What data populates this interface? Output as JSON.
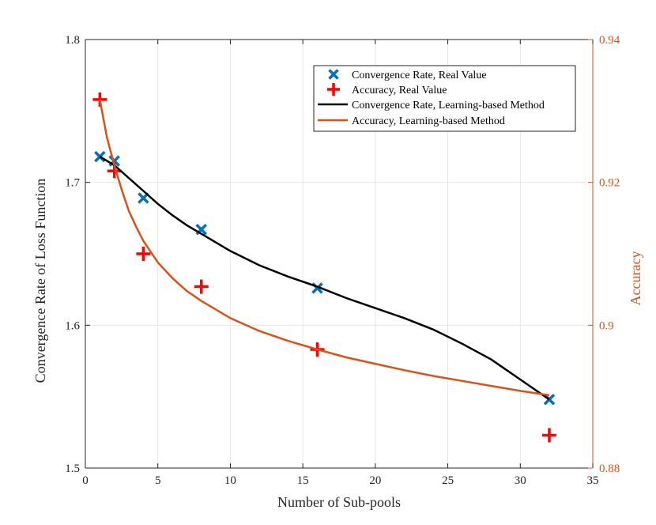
{
  "chart_data": {
    "type": "line",
    "title": "",
    "xlabel": "Number of Sub-pools",
    "ylabel_left": "Convergence Rate of Loss Function",
    "ylabel_right": "Accuracy",
    "xlim": [
      0,
      35
    ],
    "ylim_left": [
      1.5,
      1.8
    ],
    "ylim_right": [
      0.88,
      0.94
    ],
    "xticks": [
      0,
      5,
      10,
      15,
      20,
      25,
      30,
      35
    ],
    "xtick_labels": [
      "0",
      "5",
      "10",
      "15",
      "20",
      "25",
      "30",
      "35"
    ],
    "yticks_left": [
      1.5,
      1.6,
      1.7,
      1.8
    ],
    "ytick_labels_left": [
      "1.5",
      "1.6",
      "1.7",
      "1.8"
    ],
    "yticks_right": [
      0.88,
      0.9,
      0.92,
      0.94
    ],
    "ytick_labels_right": [
      "0.88",
      "0.9",
      "0.92",
      "0.94"
    ],
    "grid": true,
    "legend_position": "top-right",
    "colors": {
      "convergence_marker": "#0072BD",
      "accuracy_marker": "#FF0000",
      "convergence_line": "#000000",
      "accuracy_line": "#D95319",
      "grid": "#e6e6e6",
      "axis": "#262626"
    },
    "series": [
      {
        "name": "Convergence Rate, Real Value",
        "kind": "marker-x",
        "axis": "left",
        "x": [
          1,
          2,
          4,
          8,
          16,
          32
        ],
        "y": [
          1.718,
          1.715,
          1.689,
          1.667,
          1.626,
          1.548
        ]
      },
      {
        "name": "Accuracy, Real Value",
        "kind": "marker-plus",
        "axis": "right",
        "x": [
          1,
          2,
          4,
          8,
          16,
          32
        ],
        "y": [
          0.9316,
          0.9216,
          0.91,
          0.9054,
          0.8966,
          0.8846
        ]
      },
      {
        "name": "Convergence Rate, Learning-based Method",
        "kind": "line",
        "axis": "left",
        "x": [
          1,
          2,
          3,
          4,
          5,
          6,
          7,
          8,
          10,
          12,
          14,
          16,
          18,
          20,
          22,
          24,
          26,
          28,
          30,
          32
        ],
        "y": [
          1.718,
          1.712,
          1.703,
          1.694,
          1.685,
          1.677,
          1.67,
          1.664,
          1.652,
          1.642,
          1.634,
          1.627,
          1.619,
          1.612,
          1.605,
          1.597,
          1.587,
          1.576,
          1.562,
          1.548
        ]
      },
      {
        "name": "Accuracy, Learning-based Method",
        "kind": "line",
        "axis": "right",
        "x": [
          1,
          1.5,
          2,
          2.5,
          3,
          3.5,
          4,
          5,
          6,
          7,
          8,
          10,
          12,
          14,
          16,
          18,
          20,
          22,
          24,
          26,
          28,
          30,
          32
        ],
        "y": [
          0.9316,
          0.9262,
          0.9224,
          0.919,
          0.916,
          0.9138,
          0.9118,
          0.9088,
          0.9066,
          0.9048,
          0.9034,
          0.901,
          0.8992,
          0.8978,
          0.8966,
          0.8955,
          0.8946,
          0.8937,
          0.8929,
          0.8922,
          0.8915,
          0.8908,
          0.8902
        ]
      }
    ]
  }
}
